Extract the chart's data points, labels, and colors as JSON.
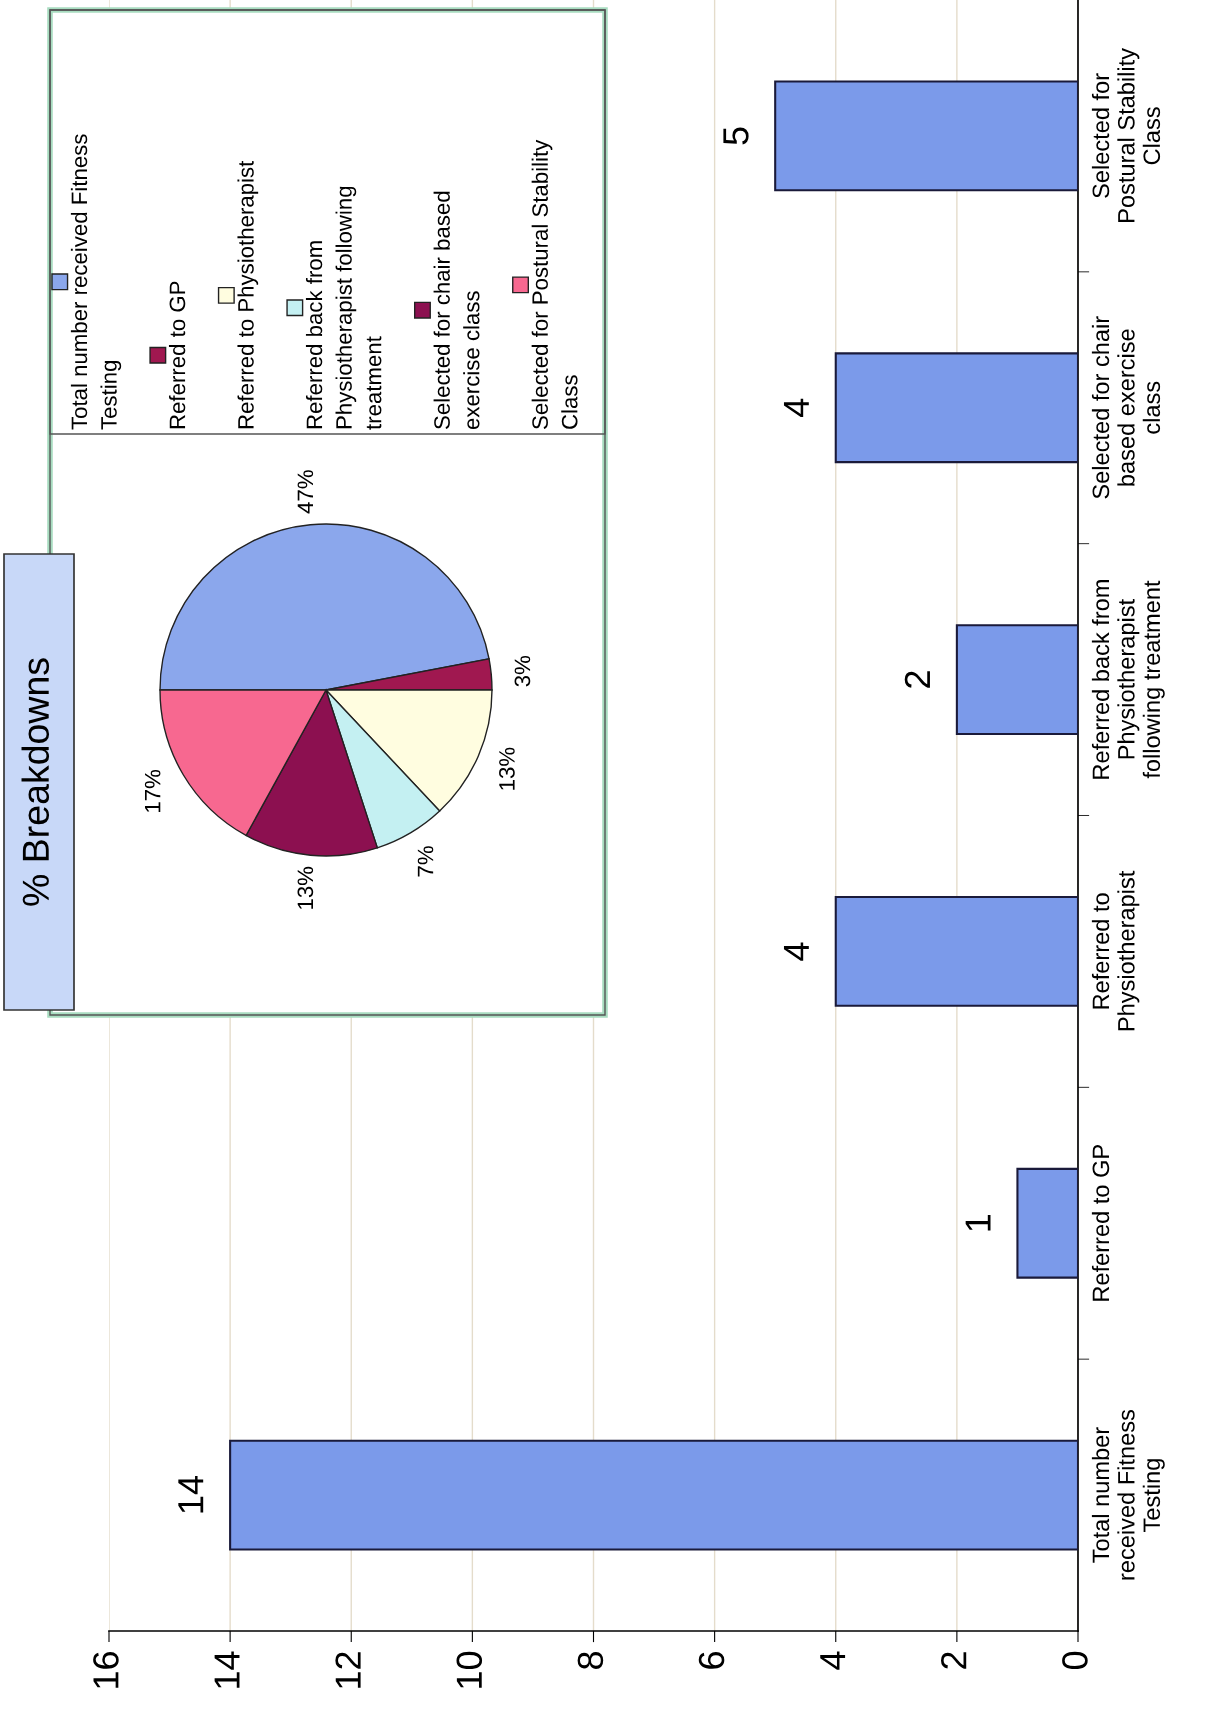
{
  "chart_data": [
    {
      "type": "bar",
      "orientation": "horizontal",
      "categories": [
        "Selected for Postural Stability Class",
        "Selected for chair based exercise class",
        "Referred back from Physiotherapist following treatment",
        "Referred to Physiotherapist",
        "Referred to GP",
        "Total number received Fitness Testing"
      ],
      "values": [
        5,
        4,
        2,
        4,
        1,
        14
      ],
      "color": "#7b9aea",
      "xlim": [
        16,
        0
      ],
      "xticks": [
        0,
        2,
        4,
        6,
        8,
        10,
        12,
        14,
        16
      ],
      "grid": "x",
      "data_labels": true
    },
    {
      "type": "pie",
      "title": "% Breakdowns",
      "categories": [
        "Total number received Fitness Testing",
        "Referred to GP",
        "Referred to Physiotherapist",
        "Referred back from Physiotherapist following treatment",
        "Selected for chair based exercise class",
        "Selected for Postural Stability Class"
      ],
      "values": [
        47,
        3,
        13,
        7,
        13,
        17
      ],
      "colors": [
        "#8ba7ec",
        "#a01850",
        "#fffde0",
        "#c4f0f2",
        "#8c1050",
        "#f76890"
      ],
      "value_labels": [
        "47%",
        "3%",
        "13%",
        "7%",
        "13%",
        "17%"
      ],
      "legend": "top"
    }
  ]
}
